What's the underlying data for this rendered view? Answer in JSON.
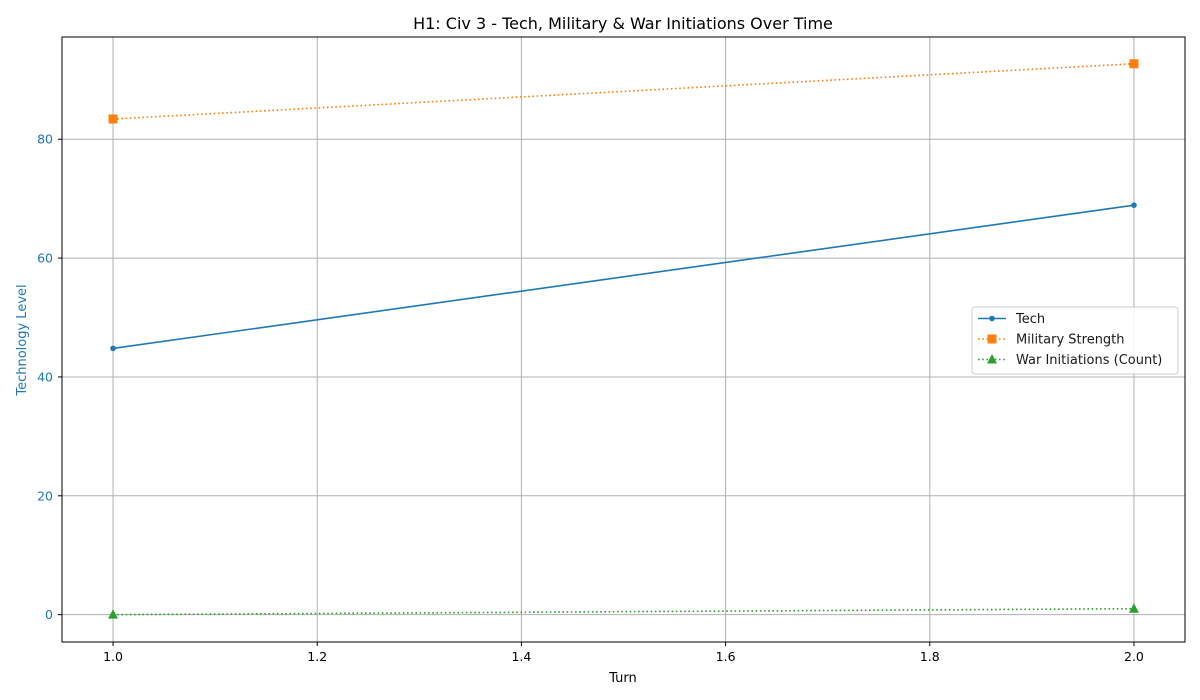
{
  "chart_data": {
    "type": "line",
    "title": "H1: Civ 3 - Tech, Military & War Initiations Over Time",
    "xlabel": "Turn",
    "ylabel": "Technology Level",
    "xlim": [
      0.95,
      2.05
    ],
    "ylim": [
      -4.6,
      97.2
    ],
    "xticks": [
      1.0,
      1.2,
      1.4,
      1.6,
      1.8,
      2.0
    ],
    "xtick_labels": [
      "1.0",
      "1.2",
      "1.4",
      "1.6",
      "1.8",
      "2.0"
    ],
    "yticks": [
      0,
      20,
      40,
      60,
      80
    ],
    "ytick_labels": [
      "0",
      "20",
      "40",
      "60",
      "80"
    ],
    "grid": true,
    "legend_position": "center-right",
    "ylabel_color": "#1f77b4",
    "x": [
      1.0,
      2.0
    ],
    "series": [
      {
        "name": "Tech",
        "values": [
          44.8,
          68.9
        ],
        "color": "#1f77b4",
        "line_style": "solid",
        "marker": "circle"
      },
      {
        "name": "Military Strength",
        "values": [
          83.4,
          92.7
        ],
        "color": "#ff7f0e",
        "line_style": "dotted",
        "marker": "square"
      },
      {
        "name": "War Initiations (Count)",
        "values": [
          0,
          1
        ],
        "color": "#2ca02c",
        "line_style": "dotted",
        "marker": "triangle"
      }
    ]
  }
}
